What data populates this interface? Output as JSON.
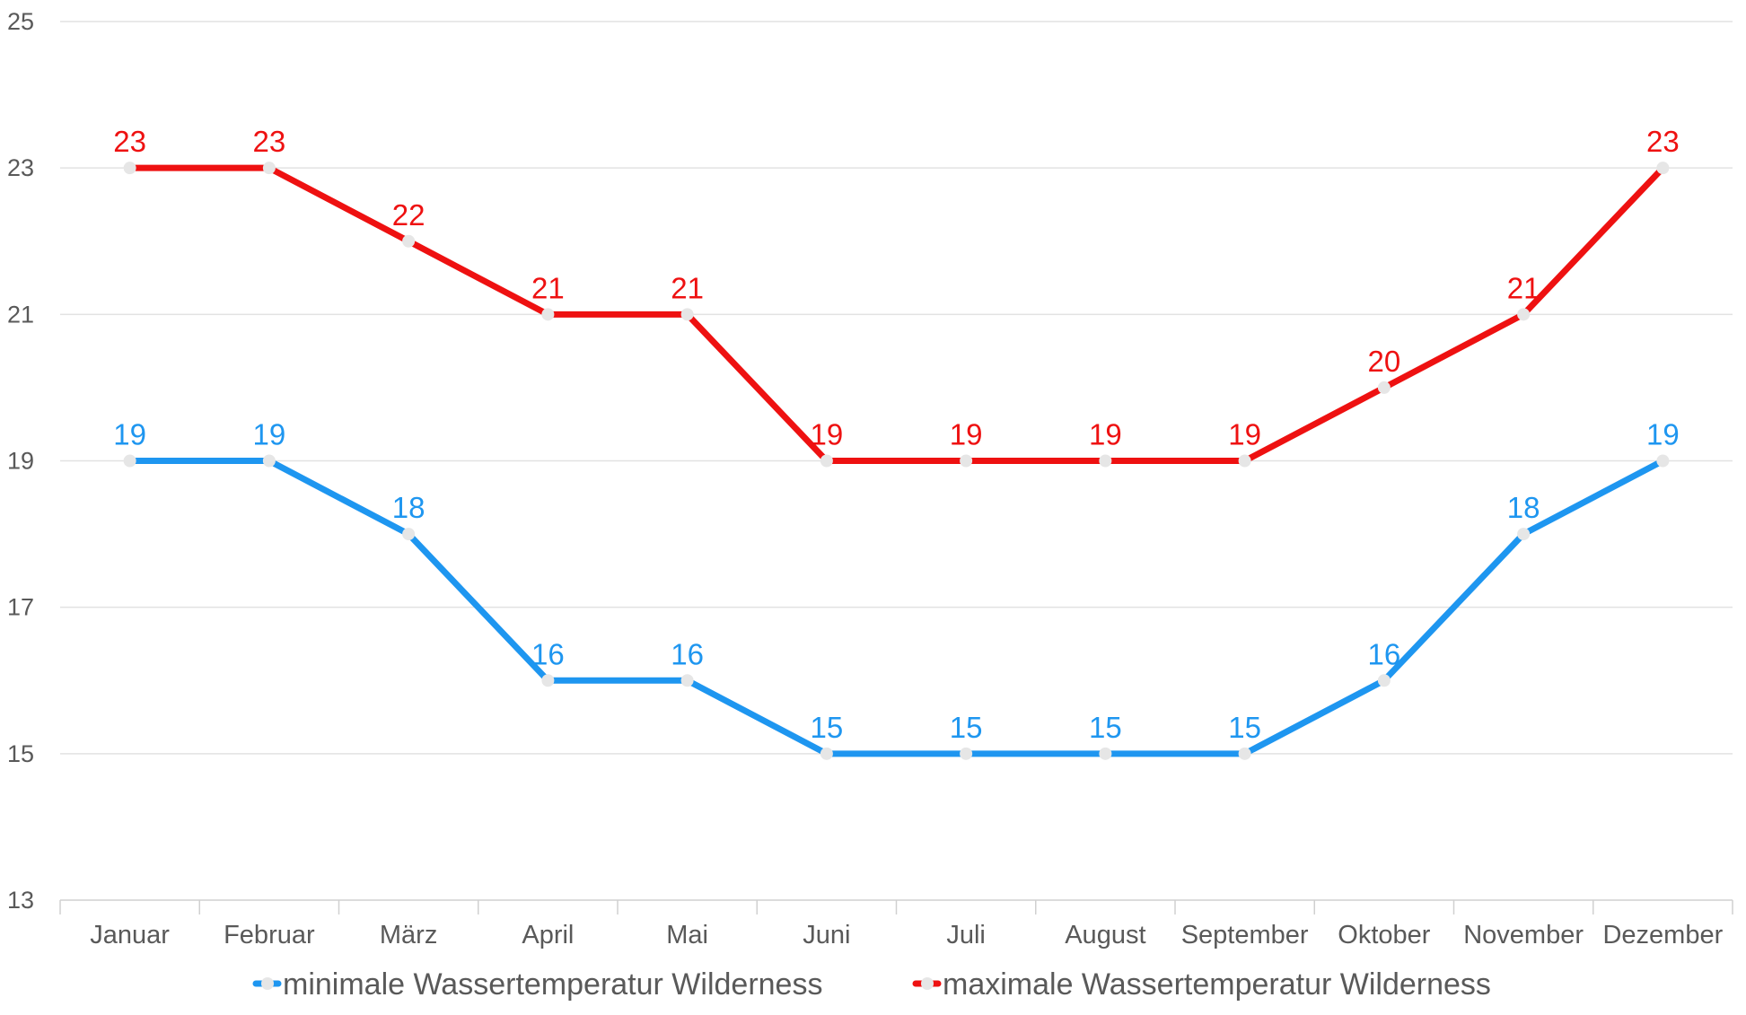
{
  "chart_data": {
    "type": "line",
    "categories": [
      "Januar",
      "Februar",
      "März",
      "April",
      "Mai",
      "Juni",
      "Juli",
      "August",
      "September",
      "Oktober",
      "November",
      "Dezember"
    ],
    "series": [
      {
        "name": "minimale Wassertemperatur Wilderness",
        "color": "#1e96f0",
        "values": [
          19,
          19,
          18,
          16,
          16,
          15,
          15,
          15,
          15,
          16,
          18,
          19
        ]
      },
      {
        "name": "maximale Wassertemperatur Wilderness",
        "color": "#ee1111",
        "values": [
          23,
          23,
          22,
          21,
          21,
          19,
          19,
          19,
          19,
          20,
          21,
          23
        ]
      }
    ],
    "ylim": [
      13,
      25
    ],
    "yticks": [
      13,
      15,
      17,
      19,
      21,
      23,
      25
    ],
    "grid": true,
    "marker_color": "#e6e6e6",
    "legend_position": "bottom",
    "data_labels": true
  }
}
